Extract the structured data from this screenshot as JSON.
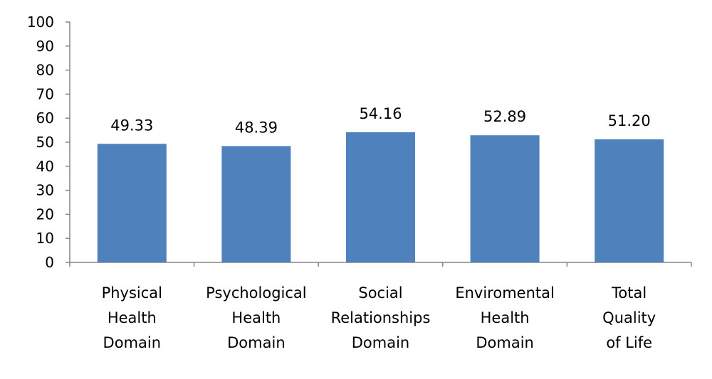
{
  "chart_data": {
    "type": "bar",
    "categories": [
      [
        "Physical",
        "Health",
        "Domain"
      ],
      [
        "Psychological",
        "Health",
        "Domain"
      ],
      [
        "Social",
        "Relationships",
        "Domain"
      ],
      [
        "Enviromental",
        "Health",
        "Domain"
      ],
      [
        "Total",
        "Quality",
        "of Life"
      ]
    ],
    "values": [
      49.33,
      48.39,
      54.16,
      52.89,
      51.2
    ],
    "data_labels": [
      "49.33",
      "48.39",
      "54.16",
      "52.89",
      "51.20"
    ],
    "yticks": [
      0,
      10,
      20,
      30,
      40,
      50,
      60,
      70,
      80,
      90,
      100
    ],
    "ylim": [
      0,
      100
    ],
    "title": "",
    "xlabel": "",
    "ylabel": "",
    "grid": false,
    "legend": "none",
    "colors": {
      "bar": "#4f81bd",
      "axis": "#868686"
    }
  }
}
